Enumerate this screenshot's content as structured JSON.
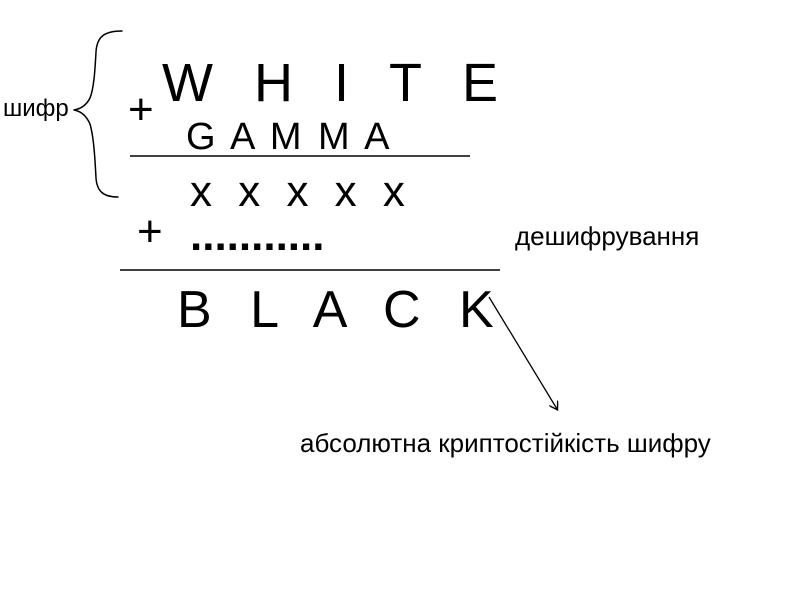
{
  "labels": {
    "cipher": "шифр",
    "decryption": "дешифрування",
    "absolute_strength": "абсолютна криптостійкість шифру"
  },
  "equation": {
    "plus_top": "+",
    "plaintext": "W H I T E",
    "gamma": "G A M M A",
    "ciphertext": "x x x x x",
    "plus_bottom": "+",
    "unknown_key": "...........",
    "decrypted": "B L A C K"
  },
  "colors": {
    "ink": "#000000",
    "background": "#ffffff"
  }
}
